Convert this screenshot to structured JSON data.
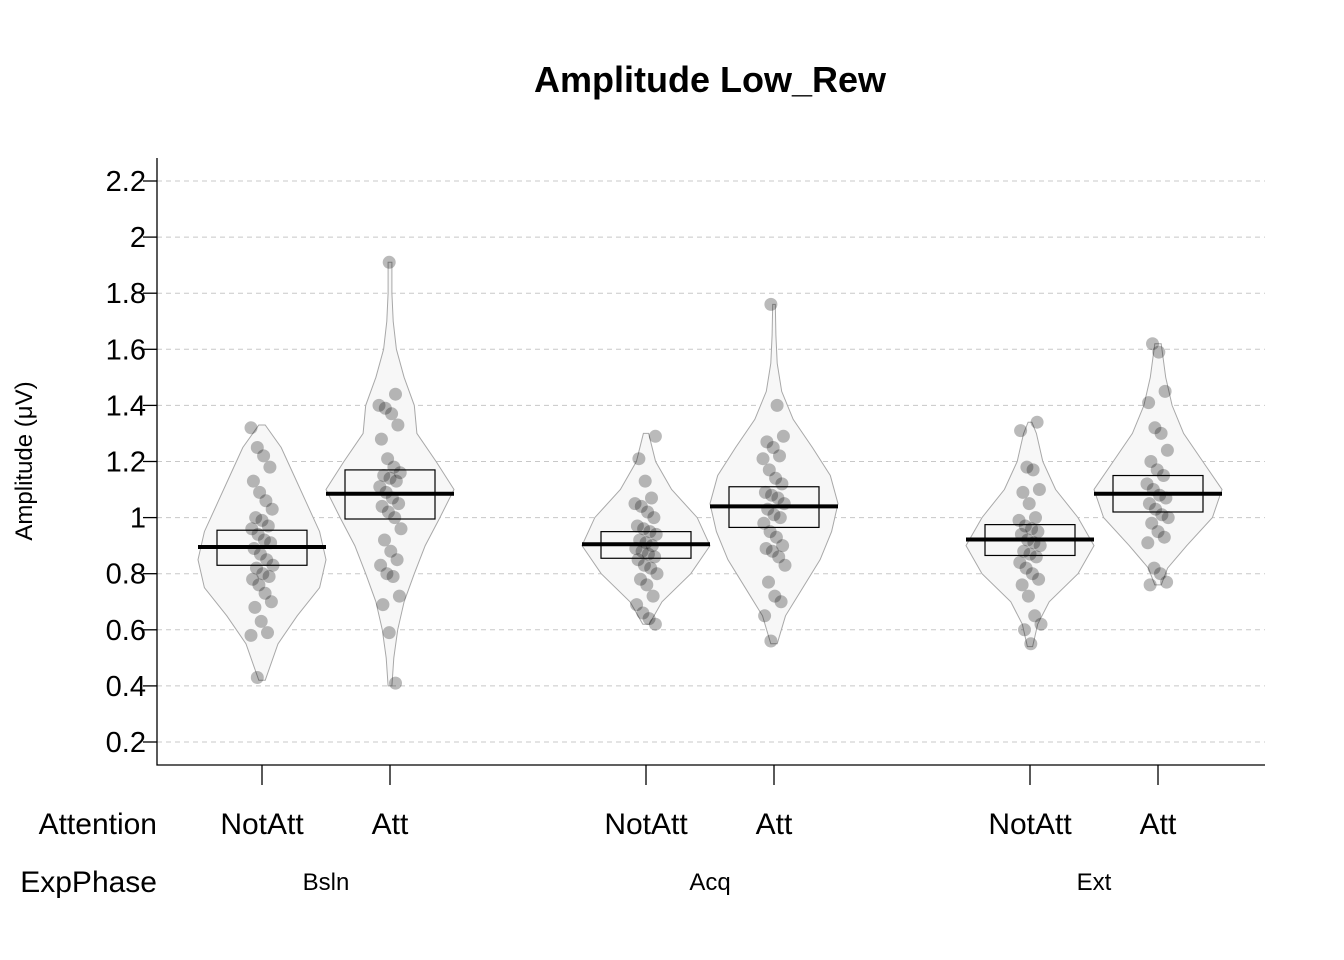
{
  "chart_data": {
    "type": "violin",
    "title": "Amplitude Low_Rew",
    "ylabel": "Amplitude (μV)",
    "ylim": [
      0.12,
      2.28
    ],
    "yticks": [
      0.2,
      0.4,
      0.6,
      0.8,
      1,
      1.2,
      1.4,
      1.6,
      1.8,
      2,
      2.2
    ],
    "grid": true,
    "factors": {
      "attention_label": "Attention",
      "phase_label": "ExpPhase"
    },
    "groups": [
      {
        "phase": "Bsln",
        "attention": "NotAtt",
        "mean": 0.895,
        "ci": [
          0.83,
          0.955
        ],
        "points": [
          1.32,
          1.25,
          1.22,
          1.18,
          1.13,
          1.09,
          1.06,
          1.03,
          1.0,
          0.99,
          0.97,
          0.96,
          0.94,
          0.92,
          0.91,
          0.89,
          0.87,
          0.85,
          0.83,
          0.82,
          0.8,
          0.79,
          0.78,
          0.76,
          0.73,
          0.7,
          0.68,
          0.63,
          0.59,
          0.58,
          0.43
        ],
        "density": [
          [
            0.42,
            0.05
          ],
          [
            0.55,
            0.25
          ],
          [
            0.65,
            0.55
          ],
          [
            0.75,
            0.9
          ],
          [
            0.85,
            1.0
          ],
          [
            0.95,
            0.9
          ],
          [
            1.05,
            0.7
          ],
          [
            1.15,
            0.5
          ],
          [
            1.25,
            0.3
          ],
          [
            1.33,
            0.05
          ]
        ]
      },
      {
        "phase": "Bsln",
        "attention": "Att",
        "mean": 1.085,
        "ci": [
          0.995,
          1.17
        ],
        "points": [
          1.91,
          1.44,
          1.4,
          1.39,
          1.37,
          1.33,
          1.28,
          1.21,
          1.18,
          1.16,
          1.15,
          1.14,
          1.13,
          1.11,
          1.09,
          1.07,
          1.05,
          1.04,
          1.02,
          1.0,
          0.96,
          0.92,
          0.88,
          0.85,
          0.83,
          0.8,
          0.79,
          0.72,
          0.69,
          0.59,
          0.41
        ],
        "density": [
          [
            0.4,
            0.03
          ],
          [
            0.5,
            0.06
          ],
          [
            0.6,
            0.12
          ],
          [
            0.7,
            0.22
          ],
          [
            0.8,
            0.38
          ],
          [
            0.9,
            0.55
          ],
          [
            1.0,
            0.78
          ],
          [
            1.1,
            1.0
          ],
          [
            1.2,
            0.72
          ],
          [
            1.3,
            0.42
          ],
          [
            1.4,
            0.38
          ],
          [
            1.5,
            0.22
          ],
          [
            1.6,
            0.1
          ],
          [
            1.7,
            0.05
          ],
          [
            1.8,
            0.03
          ],
          [
            1.91,
            0.03
          ]
        ]
      },
      {
        "phase": "Acq",
        "attention": "NotAtt",
        "mean": 0.905,
        "ci": [
          0.855,
          0.95
        ],
        "points": [
          1.29,
          1.21,
          1.13,
          1.07,
          1.05,
          1.04,
          1.02,
          1.0,
          0.97,
          0.96,
          0.95,
          0.94,
          0.92,
          0.91,
          0.9,
          0.89,
          0.88,
          0.87,
          0.86,
          0.85,
          0.83,
          0.82,
          0.8,
          0.78,
          0.76,
          0.72,
          0.69,
          0.66,
          0.64,
          0.62
        ],
        "density": [
          [
            0.62,
            0.05
          ],
          [
            0.7,
            0.25
          ],
          [
            0.8,
            0.7
          ],
          [
            0.9,
            1.0
          ],
          [
            1.0,
            0.8
          ],
          [
            1.1,
            0.4
          ],
          [
            1.2,
            0.15
          ],
          [
            1.3,
            0.04
          ]
        ]
      },
      {
        "phase": "Acq",
        "attention": "Att",
        "mean": 1.04,
        "ci": [
          0.965,
          1.11
        ],
        "points": [
          1.76,
          1.4,
          1.29,
          1.27,
          1.25,
          1.22,
          1.21,
          1.17,
          1.14,
          1.12,
          1.09,
          1.08,
          1.07,
          1.05,
          1.03,
          1.01,
          1.0,
          0.98,
          0.95,
          0.93,
          0.9,
          0.89,
          0.88,
          0.86,
          0.83,
          0.77,
          0.72,
          0.7,
          0.65,
          0.56
        ],
        "density": [
          [
            0.55,
            0.05
          ],
          [
            0.65,
            0.18
          ],
          [
            0.75,
            0.45
          ],
          [
            0.85,
            0.72
          ],
          [
            0.95,
            0.9
          ],
          [
            1.05,
            1.0
          ],
          [
            1.15,
            0.88
          ],
          [
            1.25,
            0.6
          ],
          [
            1.35,
            0.3
          ],
          [
            1.45,
            0.12
          ],
          [
            1.55,
            0.05
          ],
          [
            1.65,
            0.03
          ],
          [
            1.76,
            0.02
          ]
        ]
      },
      {
        "phase": "Ext",
        "attention": "NotAtt",
        "mean": 0.922,
        "ci": [
          0.865,
          0.975
        ],
        "points": [
          1.34,
          1.31,
          1.18,
          1.17,
          1.1,
          1.09,
          1.05,
          1.0,
          0.99,
          0.97,
          0.96,
          0.95,
          0.94,
          0.92,
          0.91,
          0.9,
          0.88,
          0.87,
          0.86,
          0.84,
          0.82,
          0.8,
          0.78,
          0.76,
          0.72,
          0.65,
          0.62,
          0.6,
          0.55
        ],
        "density": [
          [
            0.54,
            0.04
          ],
          [
            0.62,
            0.12
          ],
          [
            0.7,
            0.3
          ],
          [
            0.8,
            0.75
          ],
          [
            0.9,
            1.0
          ],
          [
            1.0,
            0.75
          ],
          [
            1.1,
            0.4
          ],
          [
            1.2,
            0.2
          ],
          [
            1.3,
            0.1
          ],
          [
            1.34,
            0.03
          ]
        ]
      },
      {
        "phase": "Ext",
        "attention": "Att",
        "mean": 1.085,
        "ci": [
          1.02,
          1.15
        ],
        "points": [
          1.62,
          1.59,
          1.45,
          1.41,
          1.32,
          1.3,
          1.24,
          1.2,
          1.17,
          1.15,
          1.12,
          1.1,
          1.08,
          1.07,
          1.05,
          1.03,
          1.01,
          1.0,
          0.98,
          0.95,
          0.93,
          0.91,
          0.82,
          0.8,
          0.77,
          0.76
        ],
        "density": [
          [
            0.76,
            0.05
          ],
          [
            0.82,
            0.15
          ],
          [
            0.9,
            0.45
          ],
          [
            1.0,
            0.85
          ],
          [
            1.1,
            1.0
          ],
          [
            1.2,
            0.7
          ],
          [
            1.3,
            0.4
          ],
          [
            1.4,
            0.22
          ],
          [
            1.5,
            0.12
          ],
          [
            1.62,
            0.05
          ]
        ]
      }
    ]
  }
}
